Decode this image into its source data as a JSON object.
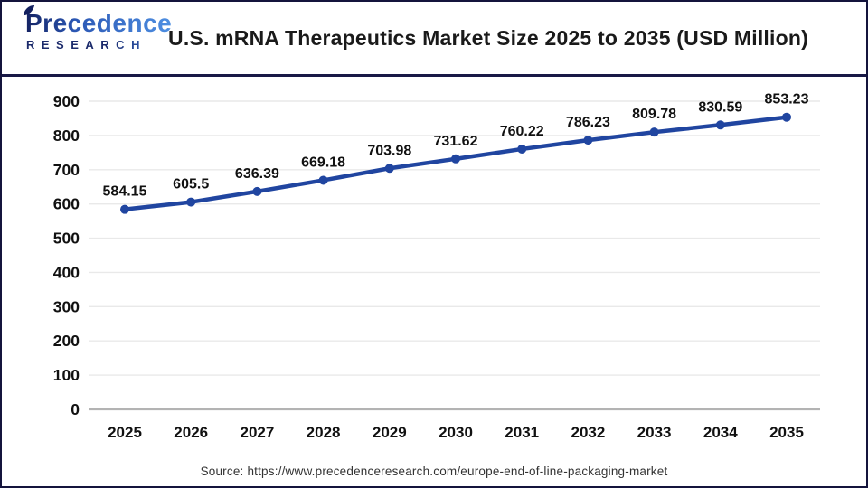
{
  "header": {
    "logo": {
      "name": "Precedence",
      "subname": "RESEARCH"
    },
    "title": "U.S. mRNA Therapeutics Market Size 2025 to 2035 (USD Million)"
  },
  "chart_data": {
    "type": "line",
    "title": "U.S. mRNA Therapeutics Market Size 2025 to 2035 (USD Million)",
    "categories": [
      "2025",
      "2026",
      "2027",
      "2028",
      "2029",
      "2030",
      "2031",
      "2032",
      "2033",
      "2034",
      "2035"
    ],
    "values": [
      584.15,
      605.5,
      636.39,
      669.18,
      703.98,
      731.62,
      760.22,
      786.23,
      809.78,
      830.59,
      853.23
    ],
    "value_labels": [
      "584.15",
      "605.5",
      "636.39",
      "669.18",
      "703.98",
      "731.62",
      "760.22",
      "786.23",
      "809.78",
      "830.59",
      "853.23"
    ],
    "xlabel": "",
    "ylabel": "",
    "ylim": [
      0,
      900
    ],
    "ytick_step": 100,
    "grid": true,
    "legend": "none",
    "line_color": "#2045a0",
    "point_color": "#2045a0",
    "gridline_color": "#e9e9e9",
    "zeroline_color": "#b3b3b3"
  },
  "footer": {
    "source": "Source: https://www.precedenceresearch.com/europe-end-of-line-packaging-market"
  }
}
